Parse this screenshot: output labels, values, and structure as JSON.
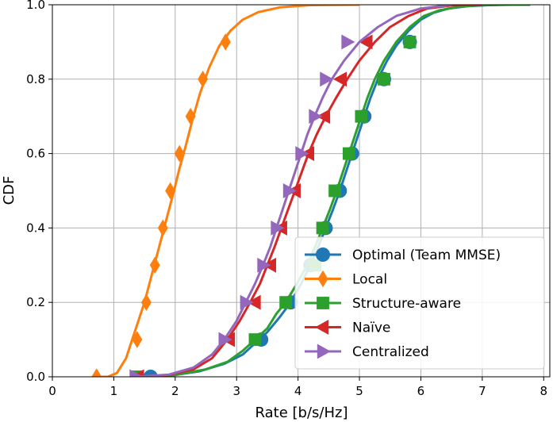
{
  "chart_data": {
    "type": "line",
    "title": "",
    "xlabel": "Rate [b/s/Hz]",
    "ylabel": "CDF",
    "xlim": [
      0,
      8.1
    ],
    "ylim": [
      0,
      1.0
    ],
    "xticks": [
      0,
      1,
      2,
      3,
      4,
      5,
      6,
      7,
      8
    ],
    "xtick_labels": [
      "0",
      "1",
      "2",
      "3",
      "4",
      "5",
      "6",
      "7",
      "8"
    ],
    "yticks": [
      0,
      0.2,
      0.4,
      0.6,
      0.8,
      1.0
    ],
    "ytick_labels": [
      "0.0",
      "0.2",
      "0.4",
      "0.6",
      "0.8",
      "1.0"
    ],
    "grid": true,
    "legend_position": "bottom-right",
    "series": [
      {
        "name": "Optimal (Team MMSE)",
        "color": "#1f77b4",
        "marker": "circle",
        "x": [
          1.6,
          2.0,
          2.4,
          2.8,
          3.1,
          3.3,
          3.5,
          3.7,
          3.88,
          4.05,
          4.2,
          4.33,
          4.45,
          4.57,
          4.68,
          4.78,
          4.88,
          4.98,
          5.08,
          5.18,
          5.3,
          5.45,
          5.6,
          5.8,
          6.0,
          6.2,
          6.45,
          6.75,
          7.1,
          7.5,
          7.78
        ],
        "y": [
          0.0,
          0.005,
          0.015,
          0.035,
          0.06,
          0.09,
          0.12,
          0.16,
          0.2,
          0.25,
          0.3,
          0.35,
          0.4,
          0.45,
          0.5,
          0.55,
          0.6,
          0.65,
          0.7,
          0.75,
          0.8,
          0.85,
          0.89,
          0.93,
          0.96,
          0.978,
          0.99,
          0.996,
          0.999,
          1.0,
          1.0
        ],
        "markers_x": [
          1.6,
          3.4,
          3.88,
          4.2,
          4.45,
          4.68,
          4.88,
          5.08,
          5.4,
          5.82
        ],
        "markers_y": [
          0.0,
          0.1,
          0.2,
          0.3,
          0.4,
          0.5,
          0.6,
          0.7,
          0.8,
          0.9
        ]
      },
      {
        "name": "Local",
        "color": "#ff7f0e",
        "marker": "diamond",
        "x": [
          0.72,
          0.9,
          1.05,
          1.2,
          1.3,
          1.4,
          1.5,
          1.58,
          1.66,
          1.74,
          1.82,
          1.9,
          1.98,
          2.07,
          2.17,
          2.28,
          2.4,
          2.55,
          2.72,
          2.9,
          3.1,
          3.35,
          3.7,
          4.2,
          5.0
        ],
        "y": [
          0.0,
          0.0,
          0.01,
          0.05,
          0.1,
          0.15,
          0.2,
          0.25,
          0.3,
          0.35,
          0.4,
          0.45,
          0.5,
          0.56,
          0.62,
          0.69,
          0.76,
          0.83,
          0.89,
          0.93,
          0.96,
          0.98,
          0.993,
          0.999,
          1.0
        ],
        "markers_x": [
          0.72,
          1.38,
          1.53,
          1.67,
          1.8,
          1.92,
          2.07,
          2.25,
          2.45,
          2.82
        ],
        "markers_y": [
          0.0,
          0.1,
          0.2,
          0.3,
          0.4,
          0.5,
          0.6,
          0.7,
          0.8,
          0.9
        ]
      },
      {
        "name": "Structure-aware",
        "color": "#2ca02c",
        "marker": "square",
        "x": [
          1.38,
          2.0,
          2.5,
          2.85,
          3.1,
          3.3,
          3.5,
          3.65,
          3.8,
          3.98,
          4.15,
          4.28,
          4.4,
          4.52,
          4.63,
          4.73,
          4.83,
          4.93,
          5.03,
          5.13,
          5.25,
          5.4,
          5.6,
          5.82,
          6.05,
          6.3,
          6.6,
          6.9,
          7.3,
          7.78
        ],
        "y": [
          0.0,
          0.005,
          0.02,
          0.04,
          0.07,
          0.1,
          0.13,
          0.17,
          0.2,
          0.25,
          0.3,
          0.35,
          0.4,
          0.45,
          0.5,
          0.55,
          0.6,
          0.65,
          0.7,
          0.75,
          0.8,
          0.85,
          0.9,
          0.94,
          0.97,
          0.985,
          0.994,
          0.998,
          1.0,
          1.0
        ],
        "markers_x": [
          1.38,
          3.3,
          3.8,
          4.28,
          4.4,
          4.6,
          4.83,
          5.03,
          5.4,
          5.82
        ],
        "markers_y": [
          0.0,
          0.1,
          0.2,
          0.3,
          0.4,
          0.5,
          0.6,
          0.7,
          0.8,
          0.9
        ]
      },
      {
        "name": "Naïve",
        "color": "#d62728",
        "marker": "triangle-left",
        "x": [
          1.4,
          1.9,
          2.3,
          2.6,
          2.85,
          3.05,
          3.22,
          3.38,
          3.5,
          3.62,
          3.73,
          3.84,
          3.95,
          4.06,
          4.17,
          4.3,
          4.45,
          4.62,
          4.8,
          5.0,
          5.25,
          5.5,
          5.8,
          6.1,
          6.5,
          7.0
        ],
        "y": [
          0.0,
          0.005,
          0.02,
          0.05,
          0.1,
          0.15,
          0.2,
          0.25,
          0.3,
          0.35,
          0.4,
          0.45,
          0.5,
          0.55,
          0.6,
          0.65,
          0.7,
          0.75,
          0.8,
          0.85,
          0.9,
          0.94,
          0.97,
          0.99,
          0.998,
          1.0
        ],
        "markers_x": [
          1.4,
          2.88,
          3.3,
          3.55,
          3.73,
          3.95,
          4.17,
          4.43,
          4.7,
          5.12
        ],
        "markers_y": [
          0.0,
          0.1,
          0.2,
          0.3,
          0.4,
          0.5,
          0.6,
          0.7,
          0.8,
          0.9
        ]
      },
      {
        "name": "Centralized",
        "color": "#9467bd",
        "marker": "triangle-right",
        "x": [
          1.35,
          1.9,
          2.3,
          2.6,
          2.8,
          3.0,
          3.15,
          3.3,
          3.43,
          3.55,
          3.65,
          3.75,
          3.85,
          3.95,
          4.05,
          4.15,
          4.27,
          4.4,
          4.55,
          4.75,
          5.0,
          5.3,
          5.6,
          6.0,
          6.5
        ],
        "y": [
          0.0,
          0.006,
          0.025,
          0.06,
          0.1,
          0.15,
          0.2,
          0.25,
          0.3,
          0.35,
          0.4,
          0.45,
          0.5,
          0.55,
          0.6,
          0.65,
          0.7,
          0.75,
          0.8,
          0.85,
          0.9,
          0.94,
          0.97,
          0.99,
          1.0
        ],
        "markers_x": [
          1.35,
          2.8,
          3.15,
          3.43,
          3.65,
          3.85,
          4.05,
          4.27,
          4.45,
          4.8
        ],
        "markers_y": [
          0.0,
          0.1,
          0.2,
          0.3,
          0.4,
          0.5,
          0.6,
          0.7,
          0.8,
          0.9
        ]
      }
    ]
  }
}
